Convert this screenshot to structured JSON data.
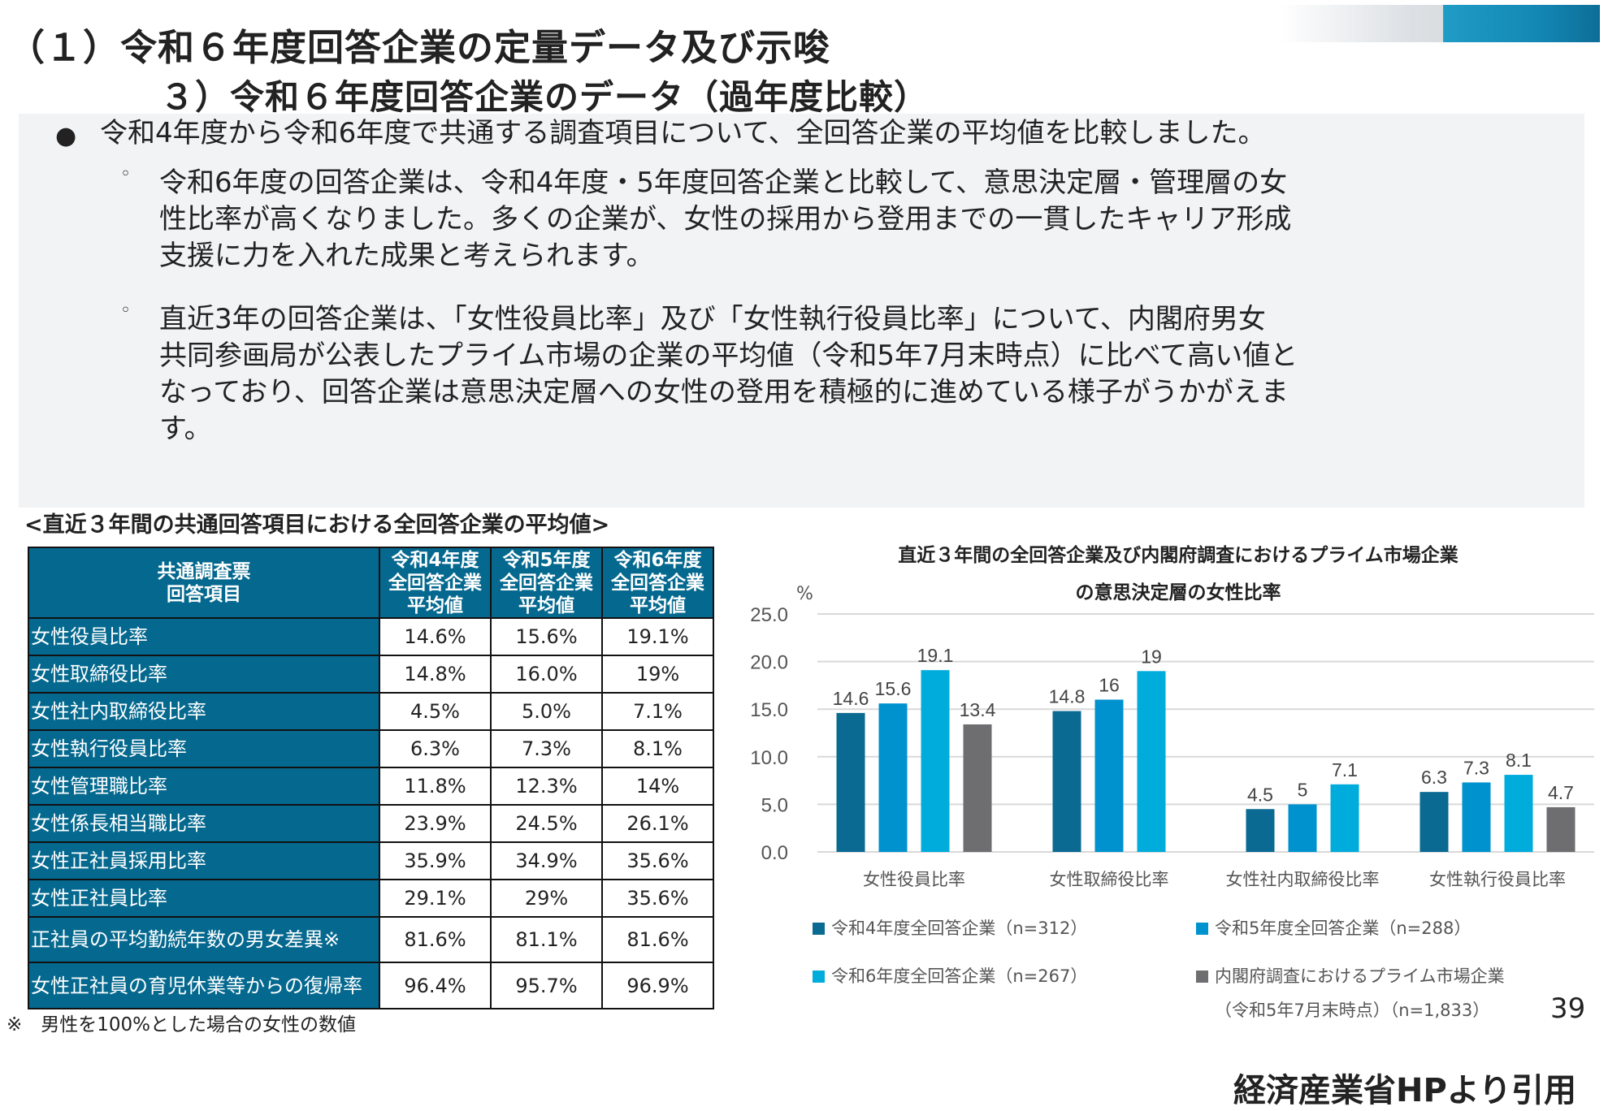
{
  "header": {
    "title": "（１）令和６年度回答企業の定量データ及び示唆",
    "subtitle": "３）令和６年度回答企業のデータ（過年度比較）"
  },
  "summary": {
    "bullet": "令和4年度から令和6年度で共通する調査項目について、全回答企業の平均値を比較しました。",
    "sub1": [
      "令和6年度の回答企業は、令和4年度・5年度回答企業と比較して、意思決定層・管理層の女",
      "性比率が高くなりました。多くの企業が、女性の採用から登用までの一貫したキャリア形成",
      "支援に力を入れた成果と考えられます。"
    ],
    "sub2": [
      "直近3年の回答企業は、「女性役員比率」及び「女性執行役員比率」について、内閣府男女",
      "共同参画局が公表したプライム市場の企業の平均値（令和5年7月末時点）に比べて高い値と",
      "なっており、回答企業は意思決定層への女性の登用を積極的に進めている様子がうかがえま",
      "す。"
    ]
  },
  "table": {
    "heading": "<直近３年間の共通回答項目における全回答企業の平均値>",
    "header": [
      "共通調査票\n回答項目",
      "令和4年度\n全回答企業\n平均値",
      "令和5年度\n全回答企業\n平均値",
      "令和6年度\n全回答企業\n平均値"
    ],
    "rows": [
      [
        "女性役員比率",
        "14.6%",
        "15.6%",
        "19.1%"
      ],
      [
        "女性取締役比率",
        "14.8%",
        "16.0%",
        "19%"
      ],
      [
        "女性社内取締役比率",
        "4.5%",
        "5.0%",
        "7.1%"
      ],
      [
        "女性執行役員比率",
        "6.3%",
        "7.3%",
        "8.1%"
      ],
      [
        "女性管理職比率",
        "11.8%",
        "12.3%",
        "14%"
      ],
      [
        "女性係長相当職比率",
        "23.9%",
        "24.5%",
        "26.1%"
      ],
      [
        "女性正社員採用比率",
        "35.9%",
        "34.9%",
        "35.6%"
      ],
      [
        "女性正社員比率",
        "29.1%",
        "29%",
        "35.6%"
      ],
      [
        "正社員の平均勤続年数の男女差異※",
        "81.6%",
        "81.1%",
        "81.6%"
      ],
      [
        "女性正社員の育児休業等からの復帰率",
        "96.4%",
        "95.7%",
        "96.9%"
      ]
    ],
    "footnote": "※　男性を100%とした場合の女性の数値"
  },
  "chart_data": {
    "type": "bar",
    "title": [
      "直近３年間の全回答企業及び内閣府調査におけるプライム市場企業",
      "の意思決定層の女性比率"
    ],
    "ylabel": "%",
    "ylim": [
      0,
      25
    ],
    "yticks": [
      "0.0",
      "5.0",
      "10.0",
      "15.0",
      "20.0",
      "25.0"
    ],
    "grid": true,
    "legend_position": "bottom",
    "categories": [
      "女性役員比率",
      "女性取締役比率",
      "女性社内取締役比率",
      "女性執行役員比率"
    ],
    "series": [
      {
        "name": "令和4年度全回答企業（n=312）",
        "color": "#0a6a92",
        "values": [
          14.6,
          14.8,
          4.5,
          6.3
        ],
        "labels": [
          "14.6",
          "14.8",
          "4.5",
          "6.3"
        ]
      },
      {
        "name": "令和5年度全回答企業（n=288）",
        "color": "#0092cf",
        "values": [
          15.6,
          16,
          5,
          7.3
        ],
        "labels": [
          "15.6",
          "16",
          "5",
          "7.3"
        ]
      },
      {
        "name": "令和6年度全回答企業（n=267）",
        "color": "#00acdc",
        "values": [
          19.1,
          19,
          7.1,
          8.1
        ],
        "labels": [
          "19.1",
          "19",
          "7.1",
          "8.1"
        ]
      },
      {
        "name": "内閣府調査におけるプライム市場企業",
        "name_line2": "（令和5年7月末時点）（n=1,833）",
        "color": "#6e6e70",
        "values": [
          13.4,
          null,
          null,
          4.7
        ],
        "labels": [
          "13.4",
          "",
          "",
          "4.7"
        ]
      }
    ]
  },
  "page_number": "39",
  "citation": "経済産業省HPより引用"
}
